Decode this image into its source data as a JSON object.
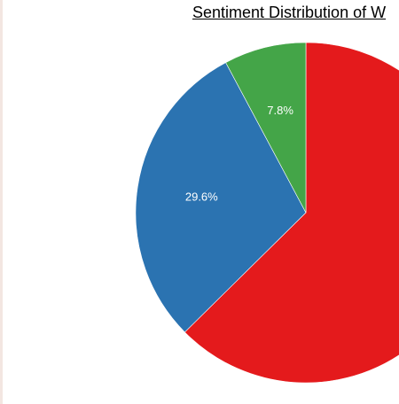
{
  "chart_data": {
    "type": "pie",
    "title": "Sentiment Distribution of W",
    "slices": [
      {
        "label": "",
        "value": 62.6,
        "display": "",
        "color": "#e41a1c"
      },
      {
        "label": "",
        "value": 29.6,
        "display": "29.6%",
        "color": "#2b73b1"
      },
      {
        "label": "",
        "value": 7.8,
        "display": "7.8%",
        "color": "#44a548"
      }
    ],
    "start_angle_deg": 0,
    "direction": "clockwise",
    "legend": false
  }
}
